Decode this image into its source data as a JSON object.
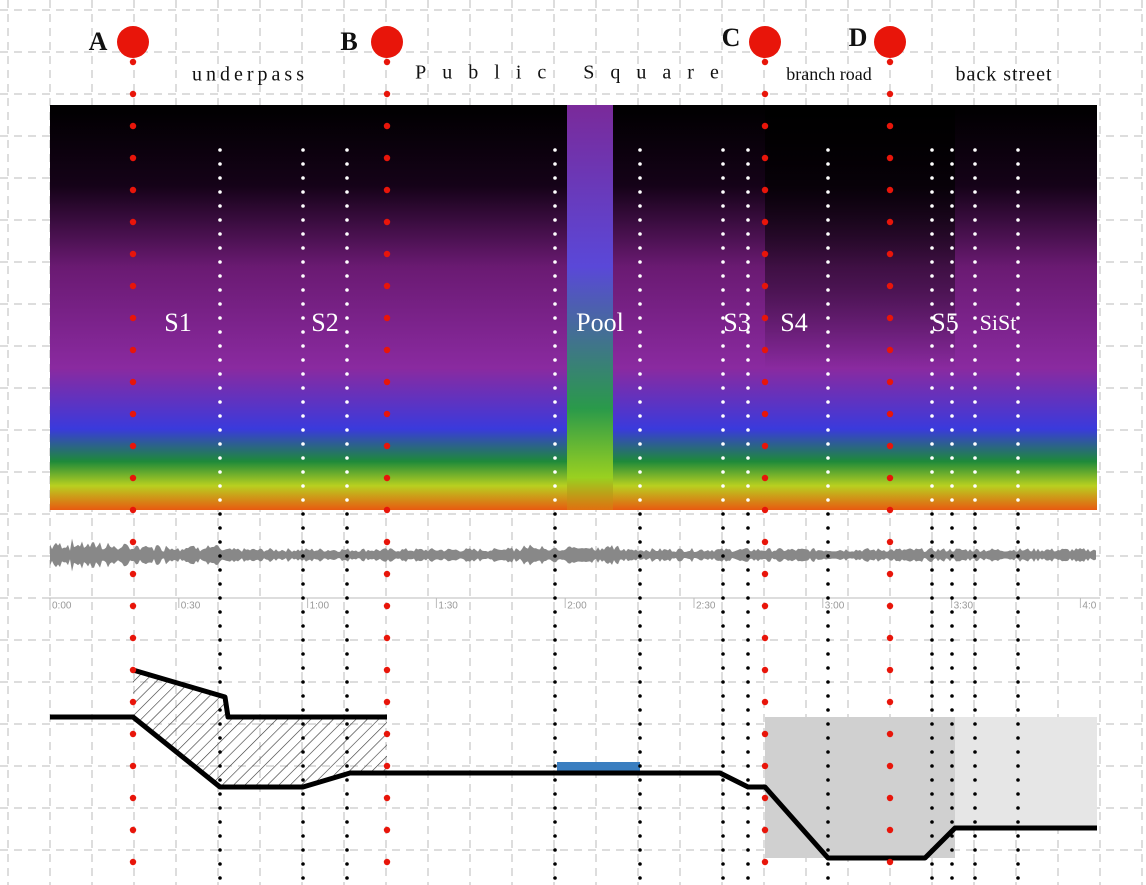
{
  "markers": [
    "A",
    "B",
    "C",
    "D"
  ],
  "zones": [
    "underpass",
    "Public Square",
    "branch road",
    "back street"
  ],
  "segments": [
    "S1",
    "S2",
    "Pool",
    "S3",
    "S4",
    "S5",
    "SiSt"
  ],
  "time_labels": [
    "0:00",
    "0:30",
    "1:00",
    "1:30",
    "2:00",
    "2:30",
    "3:00",
    "3:30",
    "4:0"
  ]
}
